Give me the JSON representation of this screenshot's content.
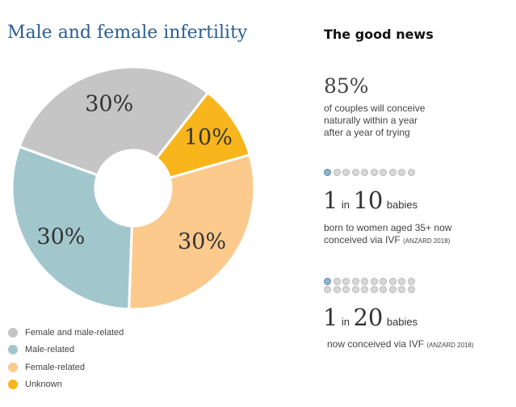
{
  "chart_data": {
    "type": "pie",
    "title": "Male and female infertility",
    "donut": true,
    "slices": [
      {
        "label": "Female and male-related",
        "value": 30,
        "color": "#c5c5c5",
        "display": "30%"
      },
      {
        "label": "Male-related",
        "value": 30,
        "color": "#a1c7cd",
        "display": "30%"
      },
      {
        "label": "Female-related",
        "value": 30,
        "color": "#fcca8d",
        "display": "30%"
      },
      {
        "label": "Unknown",
        "value": 10,
        "color": "#f9b51c",
        "display": "10%"
      }
    ],
    "legend_position": "bottom-left"
  },
  "good_news": {
    "title": "The good news",
    "stat1": {
      "value": "85%",
      "lines": [
        "of couples will conceive",
        "naturally within a year",
        "after a year of trying"
      ]
    },
    "stat2": {
      "dots_total": 10,
      "dots_highlighted": 1,
      "num_a": "1",
      "word_in": "in",
      "num_b": "10",
      "unit": "babies",
      "line1": "born to women aged 35+ now",
      "line2": "conceived via IVF",
      "source": "(ANZARD 2018)"
    },
    "stat3": {
      "dots_total": 20,
      "dots_highlighted": 1,
      "num_a": "1",
      "word_in": "in",
      "num_b": "20",
      "unit": "babies",
      "line1": "now conceived via IVF",
      "source": "(ANZARD 2018)"
    }
  }
}
